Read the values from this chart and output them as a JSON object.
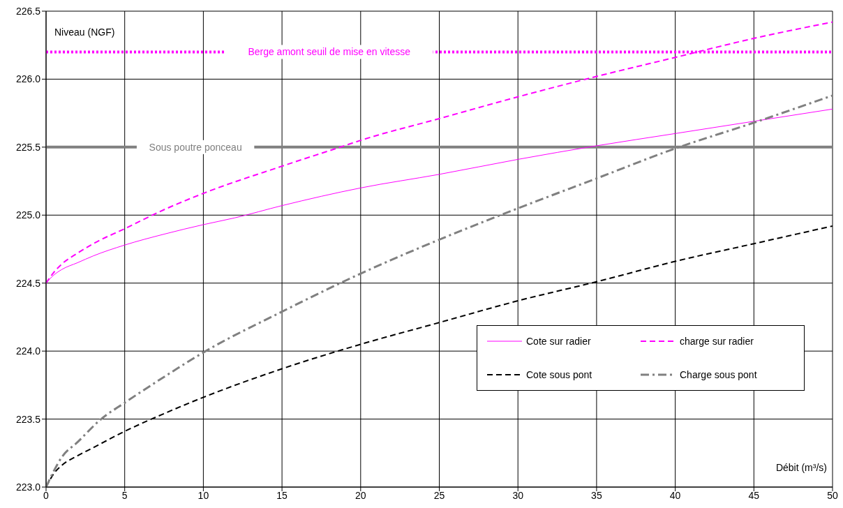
{
  "chart_data": {
    "type": "line",
    "xlabel": "Débit (m³/s)",
    "ylabel": "Niveau (NGF)",
    "xlim": [
      0,
      50
    ],
    "ylim": [
      223,
      226.5
    ],
    "xticks": [
      0,
      5,
      10,
      15,
      20,
      25,
      30,
      35,
      40,
      45,
      50
    ],
    "yticks": [
      {
        "value": 223,
        "label": "223.0"
      },
      {
        "value": 223.5,
        "label": "223.5"
      },
      {
        "value": 224,
        "label": "224.0"
      },
      {
        "value": 224.5,
        "label": "224.5"
      },
      {
        "value": 225,
        "label": "225.0"
      },
      {
        "value": 225.5,
        "label": "225.5"
      },
      {
        "value": 226,
        "label": "226.0"
      },
      {
        "value": 226.5,
        "label": "226.5"
      }
    ],
    "grid": true,
    "legend": "right",
    "marker": "none",
    "series": [
      {
        "name": "Cote sur radier",
        "color": "#ff00ff",
        "line_style": "solid",
        "x": [
          0,
          0.5,
          1,
          2,
          3,
          5,
          7.5,
          10,
          12,
          15,
          20,
          25,
          30,
          35,
          40,
          45,
          50
        ],
        "values": [
          224.5,
          224.56,
          224.6,
          224.65,
          224.7,
          224.78,
          224.86,
          224.93,
          224.98,
          225.07,
          225.2,
          225.3,
          225.41,
          225.51,
          225.6,
          225.69,
          225.78
        ]
      },
      {
        "name": "charge sur radier",
        "color": "#ff00ff",
        "line_style": "dashed",
        "x": [
          0,
          0.5,
          1,
          2,
          3,
          5,
          7.5,
          10,
          15,
          18.7,
          20,
          25,
          30,
          35,
          40,
          45,
          50
        ],
        "values": [
          224.5,
          224.58,
          224.64,
          224.72,
          224.79,
          224.9,
          225.04,
          225.16,
          225.36,
          225.5,
          225.55,
          225.71,
          225.87,
          226.02,
          226.16,
          226.3,
          226.42
        ]
      },
      {
        "name": "Cote sous pont",
        "color": "#000000",
        "line_style": "dashed",
        "x": [
          0,
          0.5,
          1,
          2,
          3,
          5,
          7.5,
          10,
          15,
          20,
          25,
          30,
          35,
          40,
          45,
          50
        ],
        "values": [
          223,
          223.1,
          223.16,
          223.23,
          223.29,
          223.41,
          223.54,
          223.66,
          223.87,
          224.05,
          224.21,
          224.37,
          224.51,
          224.66,
          224.79,
          224.92
        ]
      },
      {
        "name": "Charge sous pont",
        "color": "#808080",
        "line_style": "dashdot",
        "x": [
          0,
          0.5,
          1,
          2,
          3.5,
          5,
          7.5,
          10,
          15,
          20,
          25,
          30,
          35,
          40,
          45,
          50
        ],
        "values": [
          223,
          223.12,
          223.22,
          223.33,
          223.5,
          223.62,
          223.81,
          223.99,
          224.29,
          224.57,
          224.82,
          225.05,
          225.27,
          225.49,
          225.68,
          225.88
        ]
      }
    ],
    "ref_lines": [
      {
        "axis": "y",
        "value": 226.2,
        "label": "Berge amont seuil de mise en vitesse",
        "color": "#ff00ff",
        "line_style": "dotted"
      },
      {
        "axis": "y",
        "value": 225.5,
        "label": "Sous poutre ponceau",
        "color": "#808080",
        "line_style": "solid"
      }
    ]
  }
}
